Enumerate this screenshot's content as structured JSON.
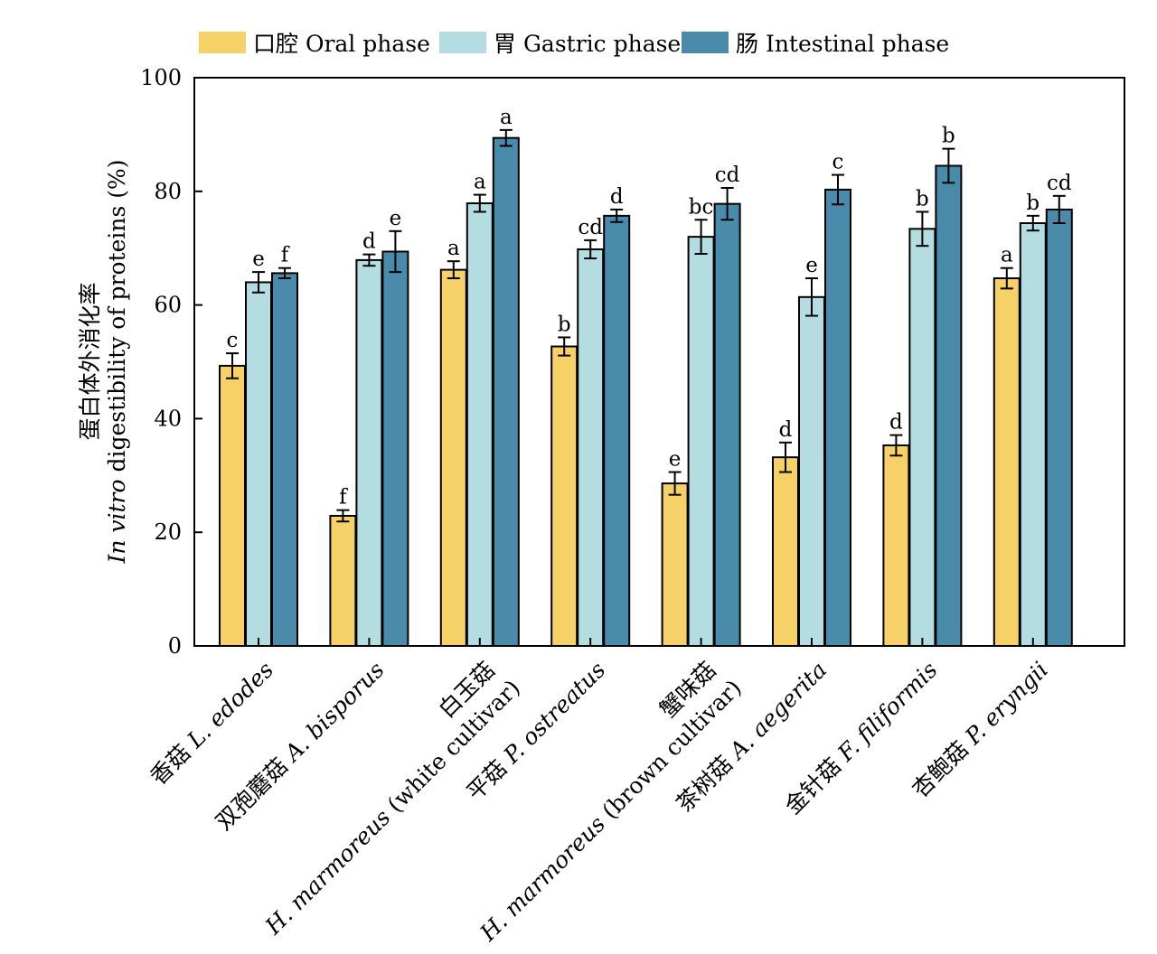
{
  "chart_data": {
    "type": "bar",
    "ylabel_line1": "蛋白体外消化率",
    "ylabel_line2_parts": [
      {
        "text": "In vitro",
        "italic": true
      },
      {
        "text": " digestibility of proteins (%)",
        "italic": false
      }
    ],
    "ylim": [
      0,
      100
    ],
    "yticks": [
      0,
      20,
      40,
      60,
      80,
      100
    ],
    "grid": false,
    "legend_position": "top",
    "series": [
      {
        "name": "口腔 Oral phase",
        "color": "#F6D167",
        "values": [
          49.3,
          22.9,
          66.2,
          52.7,
          28.6,
          33.2,
          35.3,
          64.7
        ],
        "errors": [
          2.2,
          1.0,
          1.5,
          1.6,
          2.0,
          2.6,
          1.8,
          1.8
        ],
        "labels": [
          "c",
          "f",
          "a",
          "b",
          "e",
          "d",
          "d",
          "a"
        ]
      },
      {
        "name": "胃 Gastric phase",
        "color": "#B3DDE0",
        "values": [
          64.0,
          67.9,
          77.9,
          69.8,
          72.0,
          61.4,
          73.4,
          74.4
        ],
        "errors": [
          1.8,
          1.0,
          1.5,
          1.6,
          3.0,
          3.3,
          3.0,
          1.3
        ],
        "labels": [
          "e",
          "d",
          "a",
          "cd",
          "bc",
          "e",
          "b",
          "b"
        ]
      },
      {
        "name": "肠 Intestinal phase",
        "color": "#4A8AAA",
        "values": [
          65.6,
          69.4,
          89.4,
          75.7,
          77.8,
          80.3,
          84.5,
          76.8
        ],
        "errors": [
          0.9,
          3.6,
          1.4,
          1.1,
          2.8,
          2.6,
          3.0,
          2.4
        ],
        "labels": [
          "f",
          "e",
          "a",
          "d",
          "cd",
          "c",
          "b",
          "cd"
        ]
      }
    ],
    "categories": [
      [
        {
          "text": "香菇 ",
          "italic": false
        },
        {
          "text": "L. edodes",
          "italic": true
        }
      ],
      [
        {
          "text": "双孢蘑菇 ",
          "italic": false
        },
        {
          "text": "A. bisporus",
          "italic": true
        }
      ],
      [
        {
          "text": "白玉菇",
          "italic": false
        }
      ],
      [
        {
          "text": "平菇 ",
          "italic": false
        },
        {
          "text": "P. ostreatus",
          "italic": true
        }
      ],
      [
        {
          "text": "蟹味菇",
          "italic": false
        }
      ],
      [
        {
          "text": "茶树菇 ",
          "italic": false
        },
        {
          "text": "A. aegerita",
          "italic": true
        }
      ],
      [
        {
          "text": "金针菇 ",
          "italic": false
        },
        {
          "text": "F. filiformis",
          "italic": true
        }
      ],
      [
        {
          "text": "杏鲍菇 ",
          "italic": false
        },
        {
          "text": "P. eryngii",
          "italic": true
        }
      ]
    ],
    "category_sublabels": [
      null,
      null,
      [
        {
          "text": "H. marmoreus",
          "italic": true
        },
        {
          "text": " (white cultivar)",
          "italic": false
        }
      ],
      null,
      [
        {
          "text": "H. marmoreus",
          "italic": true
        },
        {
          "text": " (brown cultivar)",
          "italic": false
        }
      ],
      null,
      null,
      null
    ]
  }
}
